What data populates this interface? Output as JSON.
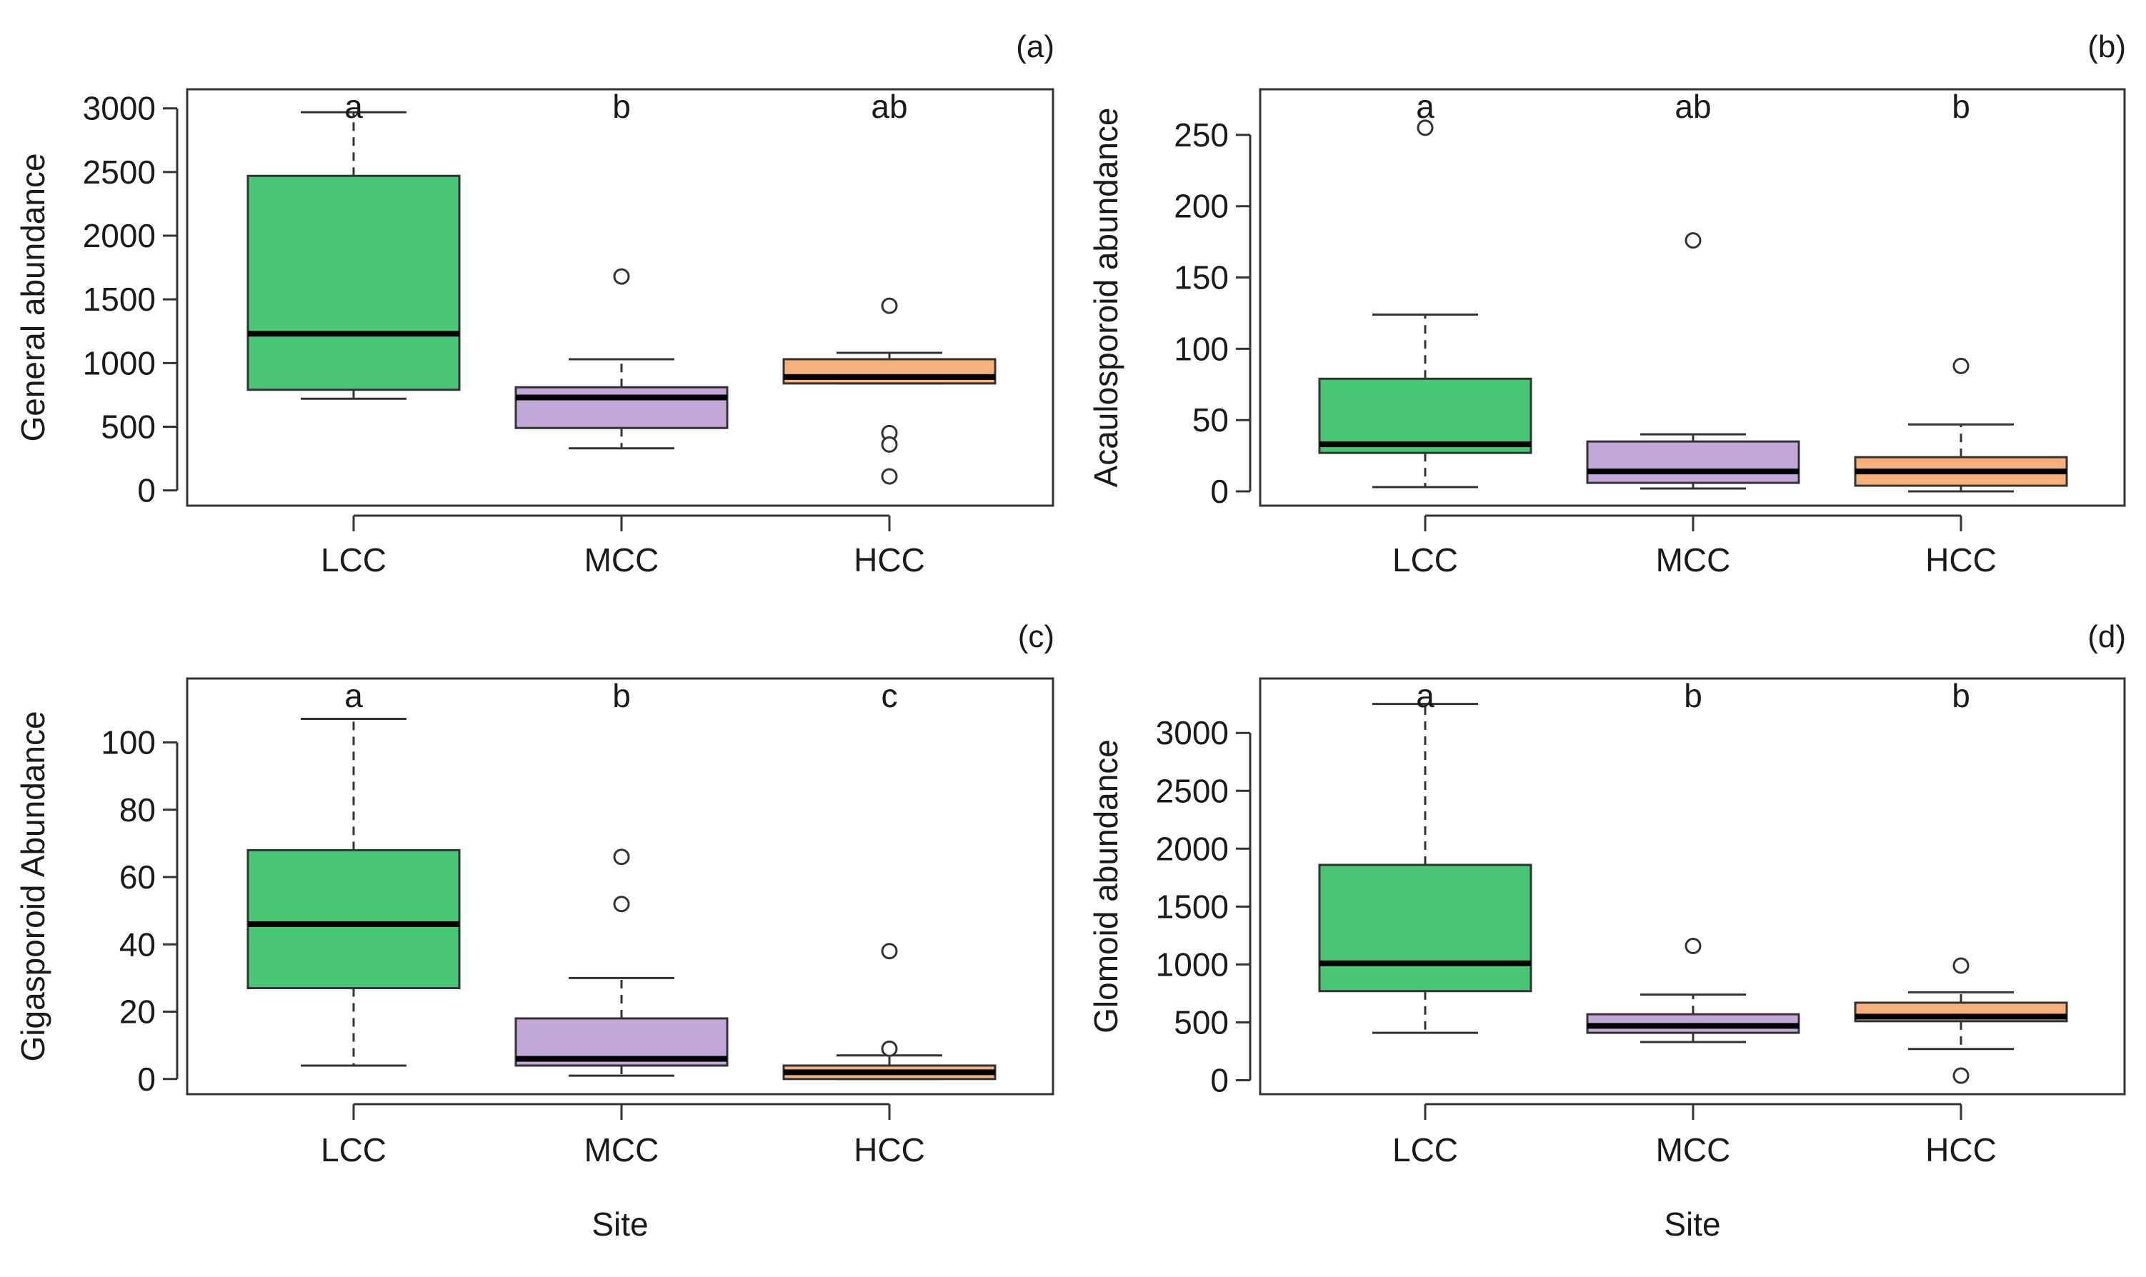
{
  "colors": {
    "LCC": "#48c774",
    "MCC": "#c3a8d9",
    "HCC": "#f7b07a"
  },
  "chart_data": [
    {
      "type": "box",
      "panel_label": "(a)",
      "title": "",
      "xlabel": "",
      "ylabel": "General abundance",
      "ylim": [
        -120,
        3150
      ],
      "yticks": [
        0,
        500,
        1000,
        1500,
        2000,
        2500,
        3000
      ],
      "ytick_labels": [
        "0",
        "500",
        "1000",
        "1500",
        "2000",
        "2500",
        "3000"
      ],
      "categories": [
        "LCC",
        "MCC",
        "HCC"
      ],
      "boxes": [
        {
          "name": "LCC",
          "whisker_low": 720,
          "q1": 790,
          "median": 1230,
          "q3": 2470,
          "whisker_high": 2970,
          "outliers": [],
          "letter": "a"
        },
        {
          "name": "MCC",
          "whisker_low": 330,
          "q1": 490,
          "median": 730,
          "q3": 810,
          "whisker_high": 1030,
          "outliers": [
            1680
          ],
          "letter": "b"
        },
        {
          "name": "HCC",
          "whisker_low": 840,
          "q1": 840,
          "median": 890,
          "q3": 1030,
          "whisker_high": 1080,
          "outliers": [
            1450,
            450,
            360,
            110
          ],
          "letter": "ab"
        }
      ]
    },
    {
      "type": "box",
      "panel_label": "(b)",
      "title": "",
      "xlabel": "",
      "ylabel": "Acaulosporoid abundance",
      "ylim": [
        -10,
        282
      ],
      "yticks": [
        0,
        50,
        100,
        150,
        200,
        250
      ],
      "ytick_labels": [
        "0",
        "50",
        "100",
        "150",
        "200",
        "250"
      ],
      "categories": [
        "LCC",
        "MCC",
        "HCC"
      ],
      "boxes": [
        {
          "name": "LCC",
          "whisker_low": 3,
          "q1": 27,
          "median": 33,
          "q3": 79,
          "whisker_high": 124,
          "outliers": [
            255
          ],
          "letter": "a"
        },
        {
          "name": "MCC",
          "whisker_low": 2,
          "q1": 6,
          "median": 14,
          "q3": 35,
          "whisker_high": 40,
          "outliers": [
            176
          ],
          "letter": "ab"
        },
        {
          "name": "HCC",
          "whisker_low": 0,
          "q1": 4,
          "median": 14,
          "q3": 24,
          "whisker_high": 47,
          "outliers": [
            88
          ],
          "letter": "b"
        }
      ]
    },
    {
      "type": "box",
      "panel_label": "(c)",
      "title": "",
      "xlabel": "Site",
      "ylabel": "Gigasporoid Abundance",
      "ylim": [
        -4.5,
        119
      ],
      "yticks": [
        0,
        20,
        40,
        60,
        80,
        100
      ],
      "ytick_labels": [
        "0",
        "20",
        "40",
        "60",
        "80",
        "100"
      ],
      "categories": [
        "LCC",
        "MCC",
        "HCC"
      ],
      "boxes": [
        {
          "name": "LCC",
          "whisker_low": 4,
          "q1": 27,
          "median": 46,
          "q3": 68,
          "whisker_high": 107,
          "outliers": [],
          "letter": "a"
        },
        {
          "name": "MCC",
          "whisker_low": 1,
          "q1": 4,
          "median": 6,
          "q3": 18,
          "whisker_high": 30,
          "outliers": [
            66,
            52
          ],
          "letter": "b"
        },
        {
          "name": "HCC",
          "whisker_low": 0,
          "q1": 0,
          "median": 2,
          "q3": 4,
          "whisker_high": 7,
          "outliers": [
            38,
            9
          ],
          "letter": "c"
        }
      ]
    },
    {
      "type": "box",
      "panel_label": "(d)",
      "title": "",
      "xlabel": "Site",
      "ylabel": "Glomoid abundance",
      "ylim": [
        -120,
        3470
      ],
      "yticks": [
        0,
        500,
        1000,
        1500,
        2000,
        2500,
        3000
      ],
      "ytick_labels": [
        "0",
        "500",
        "1000",
        "1500",
        "2000",
        "2500",
        "3000"
      ],
      "categories": [
        "LCC",
        "MCC",
        "HCC"
      ],
      "boxes": [
        {
          "name": "LCC",
          "whisker_low": 410,
          "q1": 770,
          "median": 1010,
          "q3": 1860,
          "whisker_high": 3250,
          "outliers": [],
          "letter": "a"
        },
        {
          "name": "MCC",
          "whisker_low": 330,
          "q1": 410,
          "median": 470,
          "q3": 570,
          "whisker_high": 740,
          "outliers": [
            1160
          ],
          "letter": "b"
        },
        {
          "name": "HCC",
          "whisker_low": 270,
          "q1": 510,
          "median": 550,
          "q3": 670,
          "whisker_high": 760,
          "outliers": [
            990,
            40
          ],
          "letter": "b"
        }
      ]
    }
  ]
}
